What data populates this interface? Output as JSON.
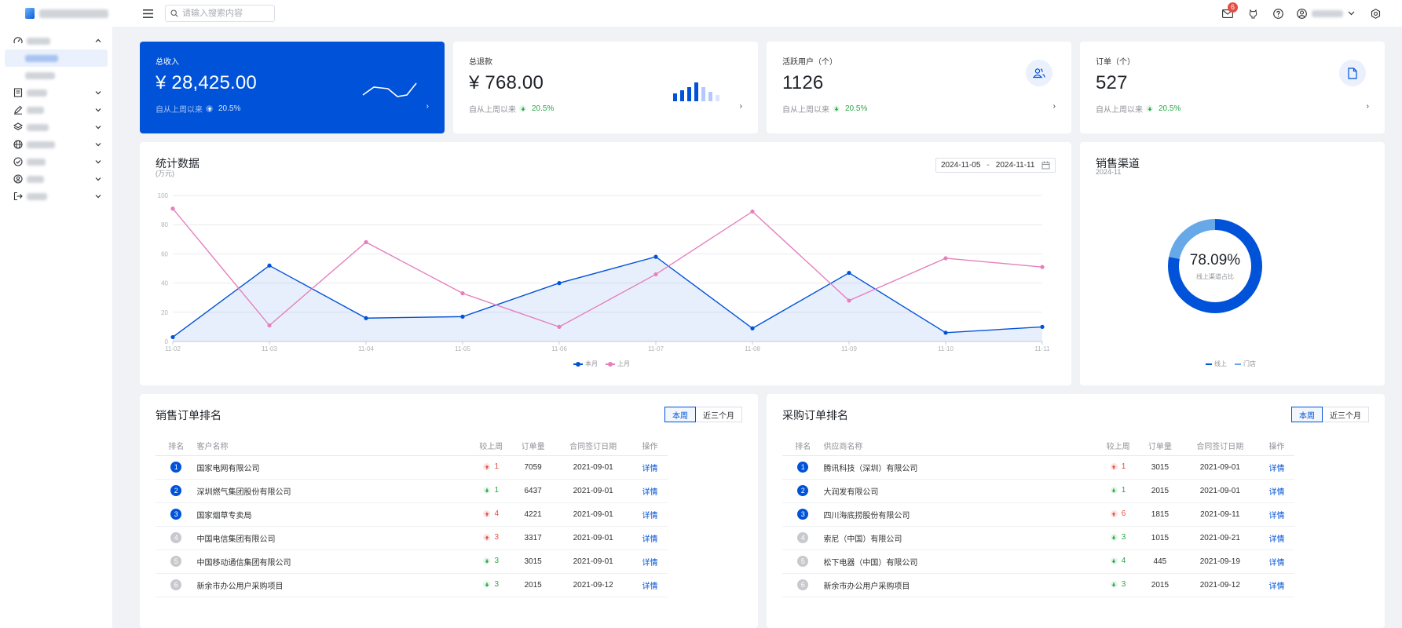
{
  "header": {
    "search_placeholder": "请输入搜索内容",
    "notification_count": "6"
  },
  "stats": [
    {
      "title": "总收入",
      "value": "¥ 28,425.00",
      "footer": "自从上周以来",
      "change": "20.5%",
      "more": "›"
    },
    {
      "title": "总退款",
      "value": "¥ 768.00",
      "footer": "自从上周以来",
      "change": "20.5%",
      "more": "›"
    },
    {
      "title": "活跃用户（个）",
      "value": "1126",
      "footer": "自从上周以来",
      "change": "20.5%",
      "more": "›"
    },
    {
      "title": "订单（个）",
      "value": "527",
      "footer": "自从上周以来",
      "change": "20.5%",
      "more": "›"
    }
  ],
  "stats_panel": {
    "title": "统计数据",
    "unit": "(万元)",
    "date_start": "2024-11-05",
    "date_sep": "-",
    "date_end": "2024-11-11"
  },
  "channel_panel": {
    "title": "销售渠道",
    "date": "2024-11",
    "percent": "78.09%",
    "center_label": "线上渠道占比"
  },
  "chart_data": [
    {
      "type": "line",
      "categories": [
        "11-02",
        "11-03",
        "11-04",
        "11-05",
        "11-06",
        "11-07",
        "11-08",
        "11-09",
        "11-10",
        "11-11"
      ],
      "series": [
        {
          "name": "本月",
          "values": [
            3,
            52,
            16,
            17,
            40,
            58,
            9,
            47,
            6,
            10
          ],
          "color": "#0052d9",
          "area": true
        },
        {
          "name": "上月",
          "values": [
            91,
            11,
            68,
            33,
            10,
            46,
            89,
            28,
            57,
            51
          ],
          "color": "#e57fbe"
        }
      ],
      "ylim": [
        0,
        100
      ],
      "yticks": [
        "0",
        "20",
        "40",
        "60",
        "80",
        "100"
      ],
      "grid": true,
      "legend": "bottom-center"
    },
    {
      "type": "pie",
      "slices": [
        {
          "name": "线上",
          "value": 78.09,
          "color": "#0052d9"
        },
        {
          "name": "门店",
          "value": 21.91,
          "color": "#66a8e8"
        }
      ],
      "legend": "bottom-center"
    }
  ],
  "sales_rank": {
    "title": "销售订单排名",
    "tabs": [
      "本周",
      "近三个月"
    ],
    "columns": [
      "排名",
      "客户名称",
      "较上周",
      "订单量",
      "合同签订日期",
      "操作"
    ],
    "rows": [
      {
        "rank": "1",
        "name": "国家电网有限公司",
        "trend": "up",
        "change": "1",
        "orders": "7059",
        "date": "2021-09-01",
        "action": "详情"
      },
      {
        "rank": "2",
        "name": "深圳燃气集团股份有限公司",
        "trend": "down",
        "change": "1",
        "orders": "6437",
        "date": "2021-09-01",
        "action": "详情"
      },
      {
        "rank": "3",
        "name": "国家烟草专卖局",
        "trend": "up",
        "change": "4",
        "orders": "4221",
        "date": "2021-09-01",
        "action": "详情"
      },
      {
        "rank": "4",
        "name": "中国电信集团有限公司",
        "trend": "up",
        "change": "3",
        "orders": "3317",
        "date": "2021-09-01",
        "action": "详情"
      },
      {
        "rank": "5",
        "name": "中国移动通信集团有限公司",
        "trend": "down",
        "change": "3",
        "orders": "3015",
        "date": "2021-09-01",
        "action": "详情"
      },
      {
        "rank": "6",
        "name": "新余市办公用户采购项目",
        "trend": "down",
        "change": "3",
        "orders": "2015",
        "date": "2021-09-12",
        "action": "详情"
      }
    ]
  },
  "purchase_rank": {
    "title": "采购订单排名",
    "tabs": [
      "本周",
      "近三个月"
    ],
    "columns": [
      "排名",
      "供应商名称",
      "较上周",
      "订单量",
      "合同签订日期",
      "操作"
    ],
    "rows": [
      {
        "rank": "1",
        "name": "腾讯科技（深圳）有限公司",
        "trend": "up",
        "change": "1",
        "orders": "3015",
        "date": "2021-09-01",
        "action": "详情"
      },
      {
        "rank": "2",
        "name": "大润发有限公司",
        "trend": "down",
        "change": "1",
        "orders": "2015",
        "date": "2021-09-01",
        "action": "详情"
      },
      {
        "rank": "3",
        "name": "四川海底捞股份有限公司",
        "trend": "up",
        "change": "6",
        "orders": "1815",
        "date": "2021-09-11",
        "action": "详情"
      },
      {
        "rank": "4",
        "name": "索尼（中国）有限公司",
        "trend": "down",
        "change": "3",
        "orders": "1015",
        "date": "2021-09-21",
        "action": "详情"
      },
      {
        "rank": "5",
        "name": "松下电器（中国）有限公司",
        "trend": "down",
        "change": "4",
        "orders": "445",
        "date": "2021-09-19",
        "action": "详情"
      },
      {
        "rank": "6",
        "name": "新余市办公用户采购项目",
        "trend": "down",
        "change": "3",
        "orders": "2015",
        "date": "2021-09-12",
        "action": "详情"
      }
    ]
  },
  "icons": {
    "menu": "hamburger-icon",
    "search": "search-icon",
    "mail": "mail-icon",
    "github": "github-icon",
    "help": "help-icon",
    "user": "user-icon",
    "settings": "settings-icon"
  },
  "colors": {
    "brand": "#0052d9",
    "up": "#e54d42",
    "down": "#28a745"
  }
}
